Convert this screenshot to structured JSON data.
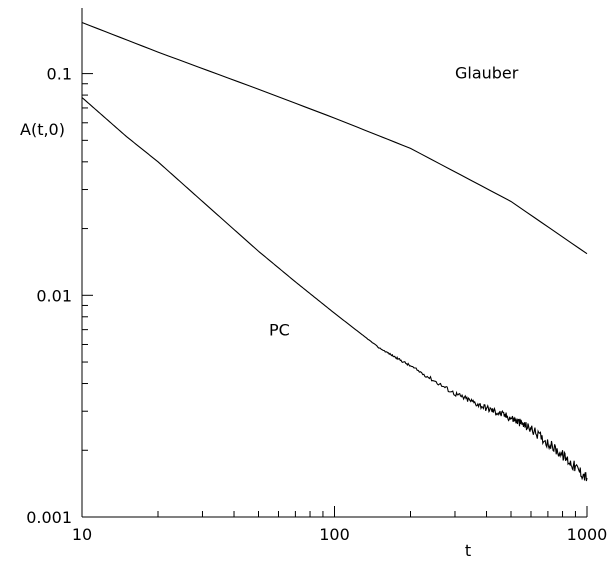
{
  "chart_data": {
    "type": "line",
    "x_scale": "log",
    "y_scale": "log",
    "xlim": [
      10,
      1000
    ],
    "ylim": [
      0.001,
      0.2
    ],
    "xlabel": "t",
    "ylabel": "A(t,0)",
    "x_ticks": [
      {
        "value": 10,
        "label": "10"
      },
      {
        "value": 100,
        "label": "100"
      },
      {
        "value": 1000,
        "label": "1000"
      }
    ],
    "y_ticks": [
      {
        "value": 0.001,
        "label": "0.001"
      },
      {
        "value": 0.01,
        "label": "0.01"
      },
      {
        "value": 0.1,
        "label": "0.1"
      }
    ],
    "grid": false,
    "series": [
      {
        "name": "Glauber",
        "x": [
          10,
          20,
          50,
          100,
          200,
          500,
          1000
        ],
        "y": [
          0.17,
          0.125,
          0.085,
          0.063,
          0.046,
          0.0265,
          0.0154
        ]
      },
      {
        "name": "PC",
        "x": [
          10,
          15,
          20,
          30,
          50,
          70,
          100,
          150,
          200,
          300,
          400,
          500,
          600,
          800,
          1000
        ],
        "y": [
          0.078,
          0.052,
          0.04,
          0.0265,
          0.0158,
          0.0115,
          0.0083,
          0.0058,
          0.0048,
          0.0036,
          0.0031,
          0.0028,
          0.0025,
          0.0019,
          0.0015
        ]
      }
    ],
    "annotations": [
      {
        "text": "Glauber",
        "near_series": "Glauber",
        "x": 300,
        "y": 0.095
      },
      {
        "text": "PC",
        "near_series": "PC",
        "x": 55,
        "y": 0.0066
      }
    ]
  }
}
